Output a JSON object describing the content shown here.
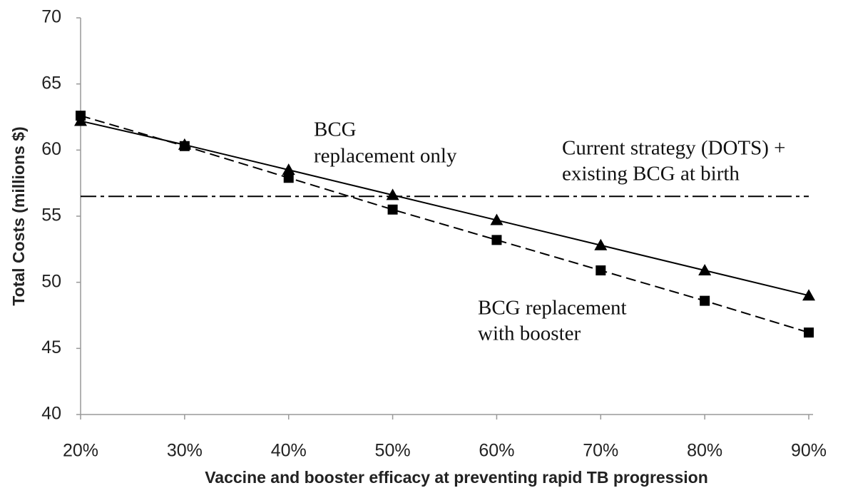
{
  "chart_data": {
    "type": "line",
    "x_label": "Vaccine and booster efficacy at preventing rapid TB progression",
    "y_label": "Total Costs (millions $)",
    "x": [
      20,
      30,
      40,
      50,
      60,
      70,
      80,
      90
    ],
    "xlim": [
      20,
      90
    ],
    "xticks": [
      {
        "value": 20,
        "label": "20%"
      },
      {
        "value": 30,
        "label": "30%"
      },
      {
        "value": 40,
        "label": "40%"
      },
      {
        "value": 50,
        "label": "50%"
      },
      {
        "value": 60,
        "label": "60%"
      },
      {
        "value": 70,
        "label": "70%"
      },
      {
        "value": 80,
        "label": "80%"
      },
      {
        "value": 90,
        "label": "90%"
      }
    ],
    "ylim": [
      40,
      70
    ],
    "yticks": [
      40,
      45,
      50,
      55,
      60,
      65,
      70
    ],
    "grid": false,
    "series": [
      {
        "color": "#000000",
        "dash": "solid",
        "marker": "triangle",
        "values": [
          62.2,
          60.4,
          58.5,
          56.6,
          54.7,
          52.8,
          50.9,
          49.0
        ]
      },
      {
        "color": "#000000",
        "dash": "dashed",
        "marker": "square",
        "values": [
          62.6,
          60.3,
          57.9,
          55.5,
          53.2,
          50.9,
          48.6,
          46.2
        ]
      },
      {
        "color": "#000000",
        "dash": "dashdot",
        "marker": "none",
        "values": [
          56.5,
          56.5,
          56.5,
          56.5,
          56.5,
          56.5,
          56.5,
          56.5
        ]
      }
    ],
    "annotations": [
      {
        "lines": [
          "BCG",
          "replacement only"
        ]
      },
      {
        "lines": [
          "Current strategy (DOTS) +",
          "existing BCG at birth"
        ]
      },
      {
        "lines": [
          "BCG replacement",
          "with booster"
        ]
      }
    ]
  }
}
